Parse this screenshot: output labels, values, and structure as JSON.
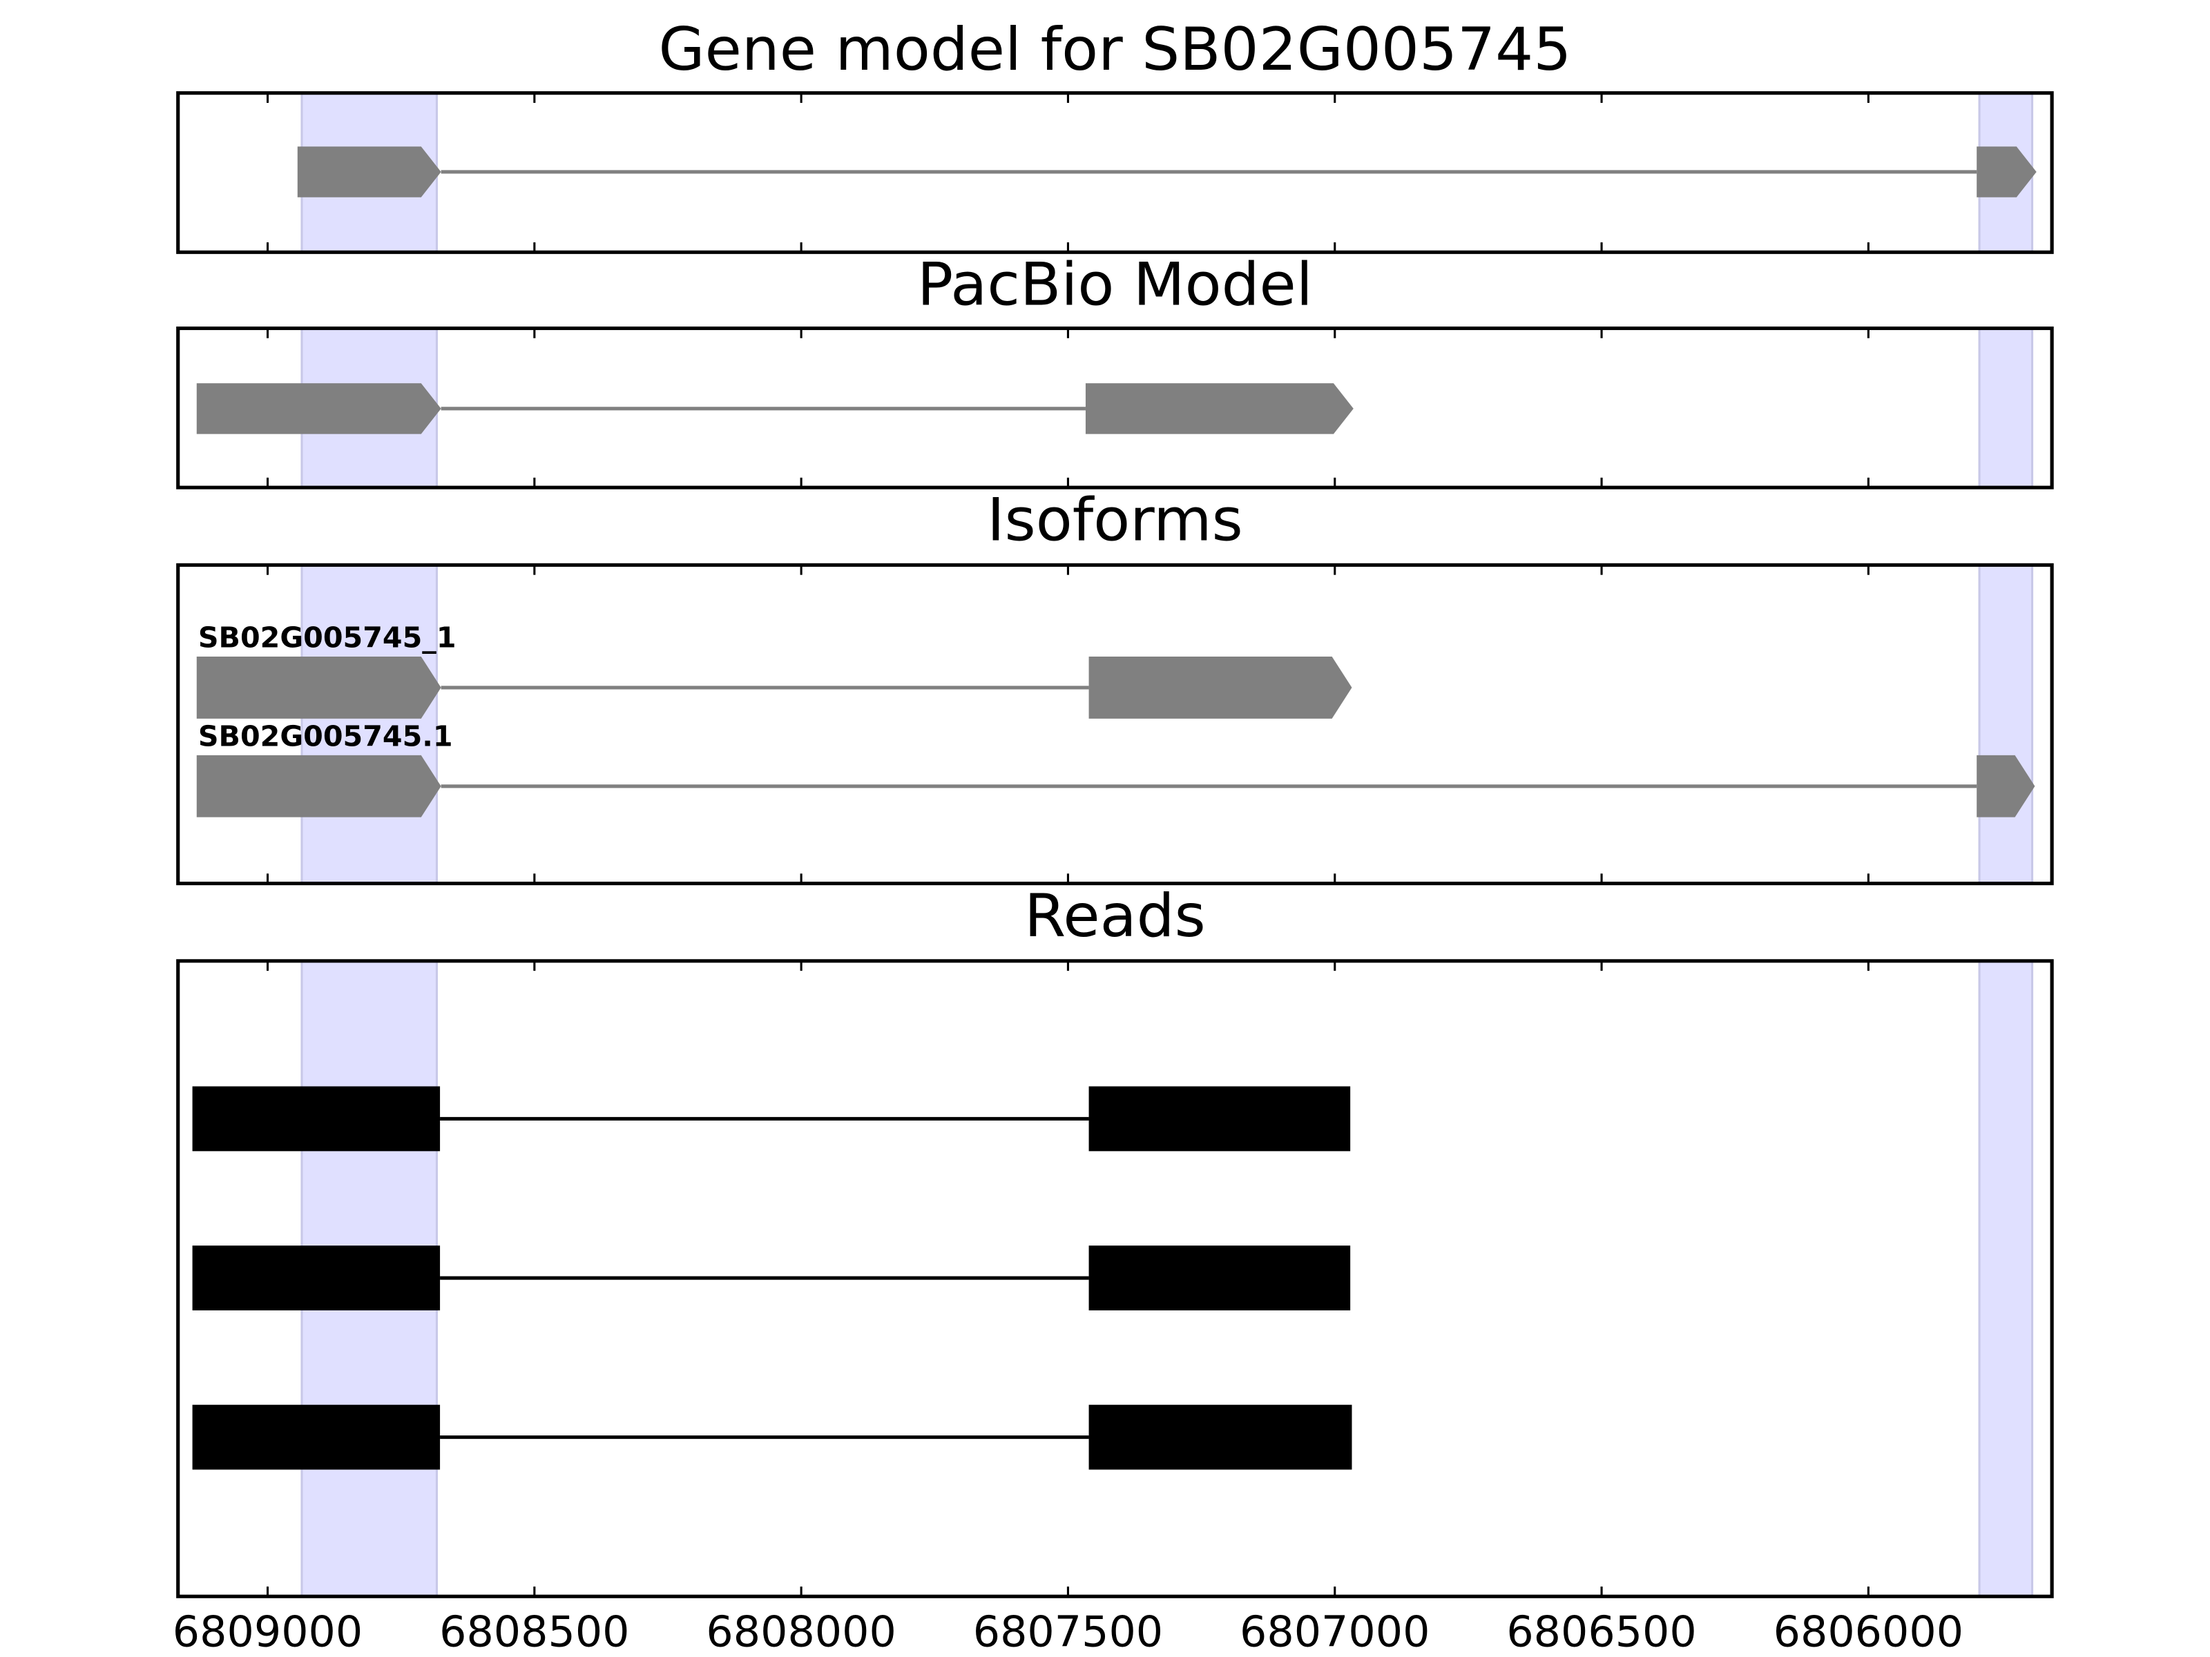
{
  "chart_data": [
    {
      "type": "gene_track",
      "title": "Gene model for SB02G005745",
      "xlim": [
        6809168,
        6805656
      ],
      "xticks": [
        6809000,
        6808500,
        6808000,
        6807500,
        6807000,
        6806500,
        6806000
      ],
      "highlights": [
        [
          6808936,
          6808683
        ],
        [
          6805792,
          6805693
        ]
      ],
      "highlight_color": "#e0e0ff",
      "exon_shape": "arrow",
      "color": "#808080",
      "features": [
        {
          "exons": [
            [
              6808944,
              6808675
            ],
            [
              6805797,
              6805685
            ]
          ]
        }
      ]
    },
    {
      "type": "gene_track",
      "title": "PacBio Model",
      "xlim": [
        6809168,
        6805656
      ],
      "xticks": [
        6809000,
        6808500,
        6808000,
        6807500,
        6807000,
        6806500,
        6806000
      ],
      "highlights": [
        [
          6808936,
          6808683
        ],
        [
          6805792,
          6805693
        ]
      ],
      "highlight_color": "#e0e0ff",
      "exon_shape": "arrow",
      "color": "#808080",
      "features": [
        {
          "exons": [
            [
              6809133,
              6808675
            ],
            [
              6807467,
              6806965
            ]
          ]
        }
      ]
    },
    {
      "type": "gene_track",
      "title": "Isoforms",
      "xlim": [
        6809168,
        6805656
      ],
      "xticks": [
        6809000,
        6808500,
        6808000,
        6807500,
        6807000,
        6806500,
        6806000
      ],
      "highlights": [
        [
          6808936,
          6808683
        ],
        [
          6805792,
          6805693
        ]
      ],
      "highlight_color": "#e0e0ff",
      "exon_shape": "arrow",
      "color": "#808080",
      "features": [
        {
          "name": "SB02G005745_1",
          "exons": [
            [
              6809133,
              6808675
            ],
            [
              6807461,
              6806968
            ]
          ]
        },
        {
          "name": "SB02G005745.1",
          "exons": [
            [
              6809133,
              6808675
            ],
            [
              6805797,
              6805688
            ]
          ]
        }
      ]
    },
    {
      "type": "gene_track",
      "title": "Reads",
      "xlim": [
        6809168,
        6805656
      ],
      "xticks": [
        6809000,
        6808500,
        6808000,
        6807500,
        6807000,
        6806500,
        6806000
      ],
      "highlights": [
        [
          6808936,
          6808683
        ],
        [
          6805792,
          6805693
        ]
      ],
      "highlight_color": "#e0e0ff",
      "exon_shape": "box",
      "color": "#000000",
      "features": [
        {
          "exons": [
            [
              6809141,
              6808677
            ],
            [
              6807461,
              6806971
            ]
          ]
        },
        {
          "exons": [
            [
              6809141,
              6808677
            ],
            [
              6807461,
              6806971
            ]
          ]
        },
        {
          "exons": [
            [
              6809141,
              6808677
            ],
            [
              6807461,
              6806968
            ]
          ]
        }
      ]
    }
  ]
}
